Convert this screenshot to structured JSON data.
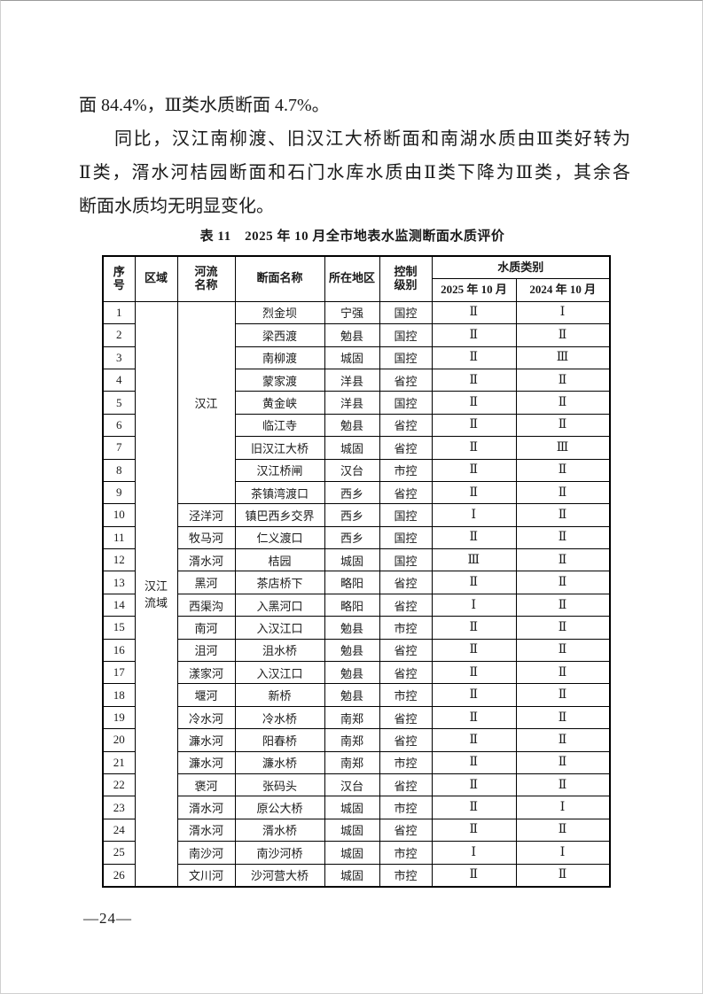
{
  "body_lines": [
    {
      "text": "面 84.4%，Ⅲ类水质断面 4.7%。",
      "justify": false,
      "indent": false
    },
    {
      "text": "同比，汉江南柳渡、旧汉江大桥断面和南湖水质由Ⅲ类好转为",
      "justify": true,
      "indent": true
    },
    {
      "text": "Ⅱ类，湑水河桔园断面和石门水库水质由Ⅱ类下降为Ⅲ类，其余各",
      "justify": true,
      "indent": false
    },
    {
      "text": "断面水质均无明显变化。",
      "justify": false,
      "indent": false
    }
  ],
  "table": {
    "title": "表 11　2025 年 10 月全市地表水监测断面水质评价",
    "headers": {
      "no": "序\n号",
      "region": "区域",
      "river": "河流\n名称",
      "section": "断面名称",
      "location": "所在地区",
      "control": "控制\n级别",
      "quality_group": "水质类别",
      "col_2025": "2025 年 10 月",
      "col_2024": "2024 年 10 月"
    },
    "region_label": "汉江\n流域",
    "rows": [
      {
        "no": "1",
        "river": "汉江",
        "river_rowspan": 9,
        "section": "烈金坝",
        "location": "宁强",
        "control": "国控",
        "q2025": "Ⅱ",
        "q2024": "Ⅰ"
      },
      {
        "no": "2",
        "river": null,
        "section": "梁西渡",
        "location": "勉县",
        "control": "国控",
        "q2025": "Ⅱ",
        "q2024": "Ⅱ"
      },
      {
        "no": "3",
        "river": null,
        "section": "南柳渡",
        "location": "城固",
        "control": "国控",
        "q2025": "Ⅱ",
        "q2024": "Ⅲ"
      },
      {
        "no": "4",
        "river": null,
        "section": "蒙家渡",
        "location": "洋县",
        "control": "省控",
        "q2025": "Ⅱ",
        "q2024": "Ⅱ"
      },
      {
        "no": "5",
        "river": null,
        "section": "黄金峡",
        "location": "洋县",
        "control": "国控",
        "q2025": "Ⅱ",
        "q2024": "Ⅱ"
      },
      {
        "no": "6",
        "river": null,
        "section": "临江寺",
        "location": "勉县",
        "control": "省控",
        "q2025": "Ⅱ",
        "q2024": "Ⅱ"
      },
      {
        "no": "7",
        "river": null,
        "section": "旧汉江大桥",
        "location": "城固",
        "control": "省控",
        "q2025": "Ⅱ",
        "q2024": "Ⅲ"
      },
      {
        "no": "8",
        "river": null,
        "section": "汉江桥闸",
        "location": "汉台",
        "control": "市控",
        "q2025": "Ⅱ",
        "q2024": "Ⅱ"
      },
      {
        "no": "9",
        "river": null,
        "section": "茶镇湾渡口",
        "location": "西乡",
        "control": "省控",
        "q2025": "Ⅱ",
        "q2024": "Ⅱ"
      },
      {
        "no": "10",
        "river": "泾洋河",
        "section": "镇巴西乡交界",
        "location": "西乡",
        "control": "国控",
        "q2025": "Ⅰ",
        "q2024": "Ⅱ"
      },
      {
        "no": "11",
        "river": "牧马河",
        "section": "仁义渡口",
        "location": "西乡",
        "control": "国控",
        "q2025": "Ⅱ",
        "q2024": "Ⅱ"
      },
      {
        "no": "12",
        "river": "湑水河",
        "section": "桔园",
        "location": "城固",
        "control": "国控",
        "q2025": "Ⅲ",
        "q2024": "Ⅱ"
      },
      {
        "no": "13",
        "river": "黑河",
        "section": "茶店桥下",
        "location": "略阳",
        "control": "省控",
        "q2025": "Ⅱ",
        "q2024": "Ⅱ"
      },
      {
        "no": "14",
        "river": "西渠沟",
        "section": "入黑河口",
        "location": "略阳",
        "control": "省控",
        "q2025": "Ⅰ",
        "q2024": "Ⅱ"
      },
      {
        "no": "15",
        "river": "南河",
        "section": "入汉江口",
        "location": "勉县",
        "control": "市控",
        "q2025": "Ⅱ",
        "q2024": "Ⅱ"
      },
      {
        "no": "16",
        "river": "沮河",
        "section": "沮水桥",
        "location": "勉县",
        "control": "省控",
        "q2025": "Ⅱ",
        "q2024": "Ⅱ"
      },
      {
        "no": "17",
        "river": "漾家河",
        "section": "入汉江口",
        "location": "勉县",
        "control": "省控",
        "q2025": "Ⅱ",
        "q2024": "Ⅱ"
      },
      {
        "no": "18",
        "river": "堰河",
        "section": "新桥",
        "location": "勉县",
        "control": "市控",
        "q2025": "Ⅱ",
        "q2024": "Ⅱ"
      },
      {
        "no": "19",
        "river": "冷水河",
        "section": "冷水桥",
        "location": "南郑",
        "control": "省控",
        "q2025": "Ⅱ",
        "q2024": "Ⅱ"
      },
      {
        "no": "20",
        "river": "濂水河",
        "section": "阳春桥",
        "location": "南郑",
        "control": "省控",
        "q2025": "Ⅱ",
        "q2024": "Ⅱ"
      },
      {
        "no": "21",
        "river": "濂水河",
        "section": "濂水桥",
        "location": "南郑",
        "control": "市控",
        "q2025": "Ⅱ",
        "q2024": "Ⅱ"
      },
      {
        "no": "22",
        "river": "褒河",
        "section": "张码头",
        "location": "汉台",
        "control": "省控",
        "q2025": "Ⅱ",
        "q2024": "Ⅱ"
      },
      {
        "no": "23",
        "river": "湑水河",
        "section": "原公大桥",
        "location": "城固",
        "control": "市控",
        "q2025": "Ⅱ",
        "q2024": "Ⅰ"
      },
      {
        "no": "24",
        "river": "湑水河",
        "section": "湑水桥",
        "location": "城固",
        "control": "省控",
        "q2025": "Ⅱ",
        "q2024": "Ⅱ"
      },
      {
        "no": "25",
        "river": "南沙河",
        "section": "南沙河桥",
        "location": "城固",
        "control": "市控",
        "q2025": "Ⅰ",
        "q2024": "Ⅰ"
      },
      {
        "no": "26",
        "river": "文川河",
        "section": "沙河营大桥",
        "location": "城固",
        "control": "市控",
        "q2025": "Ⅱ",
        "q2024": "Ⅱ"
      }
    ]
  },
  "footer": {
    "page_number": "—24—"
  }
}
